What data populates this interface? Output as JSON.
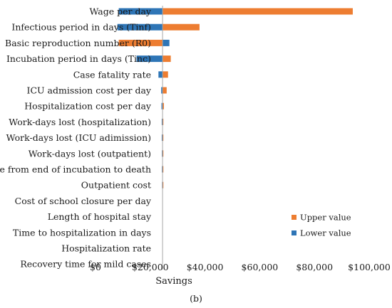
{
  "chart_data": {
    "type": "bar",
    "orientation": "horizontal",
    "style": "tornado",
    "baseline": 24500,
    "categories": [
      "Wage per day",
      "Infectious period in days (Tinf)",
      "Basic reproduction number (R0)",
      "Incubation period in days (Tinc)",
      "Case fatality rate",
      "ICU admission cost per day",
      "Hospitalization cost per day",
      "Work-days lost (hospitalization)",
      "Work-days lost (ICU adimission)",
      "Work-days lost (outpatient)",
      "Time from end of incubation to death",
      "Outpatient cost",
      "Cost of school closure per day",
      "Length of hospital stay",
      "Time to hospitalization in days",
      "Hospitalization rate",
      "Recovery time for mild cases"
    ],
    "series": [
      {
        "name": "Upper value",
        "color": "#ed7d31",
        "values": [
          94000,
          38000,
          8500,
          27500,
          26500,
          26000,
          25000,
          24750,
          24750,
          24700,
          24700,
          24650,
          24500,
          24500,
          24500,
          24500,
          24500
        ]
      },
      {
        "name": "Lower value",
        "color": "#2e75b6",
        "values": [
          8500,
          8000,
          27000,
          15000,
          23000,
          24000,
          24100,
          24200,
          24200,
          24250,
          24250,
          24300,
          24500,
          24500,
          24500,
          24500,
          24500
        ]
      }
    ],
    "xlabel": "Savings",
    "xlim": [
      0,
      100000
    ],
    "xticks": [
      0,
      20000,
      40000,
      60000,
      80000,
      100000
    ],
    "xtick_labels": [
      "$0",
      "$20,000",
      "$40,000",
      "$60,000",
      "$80,000",
      "$100,000"
    ],
    "grid": false,
    "legend_position": "bottom-right"
  },
  "caption": "(b)"
}
